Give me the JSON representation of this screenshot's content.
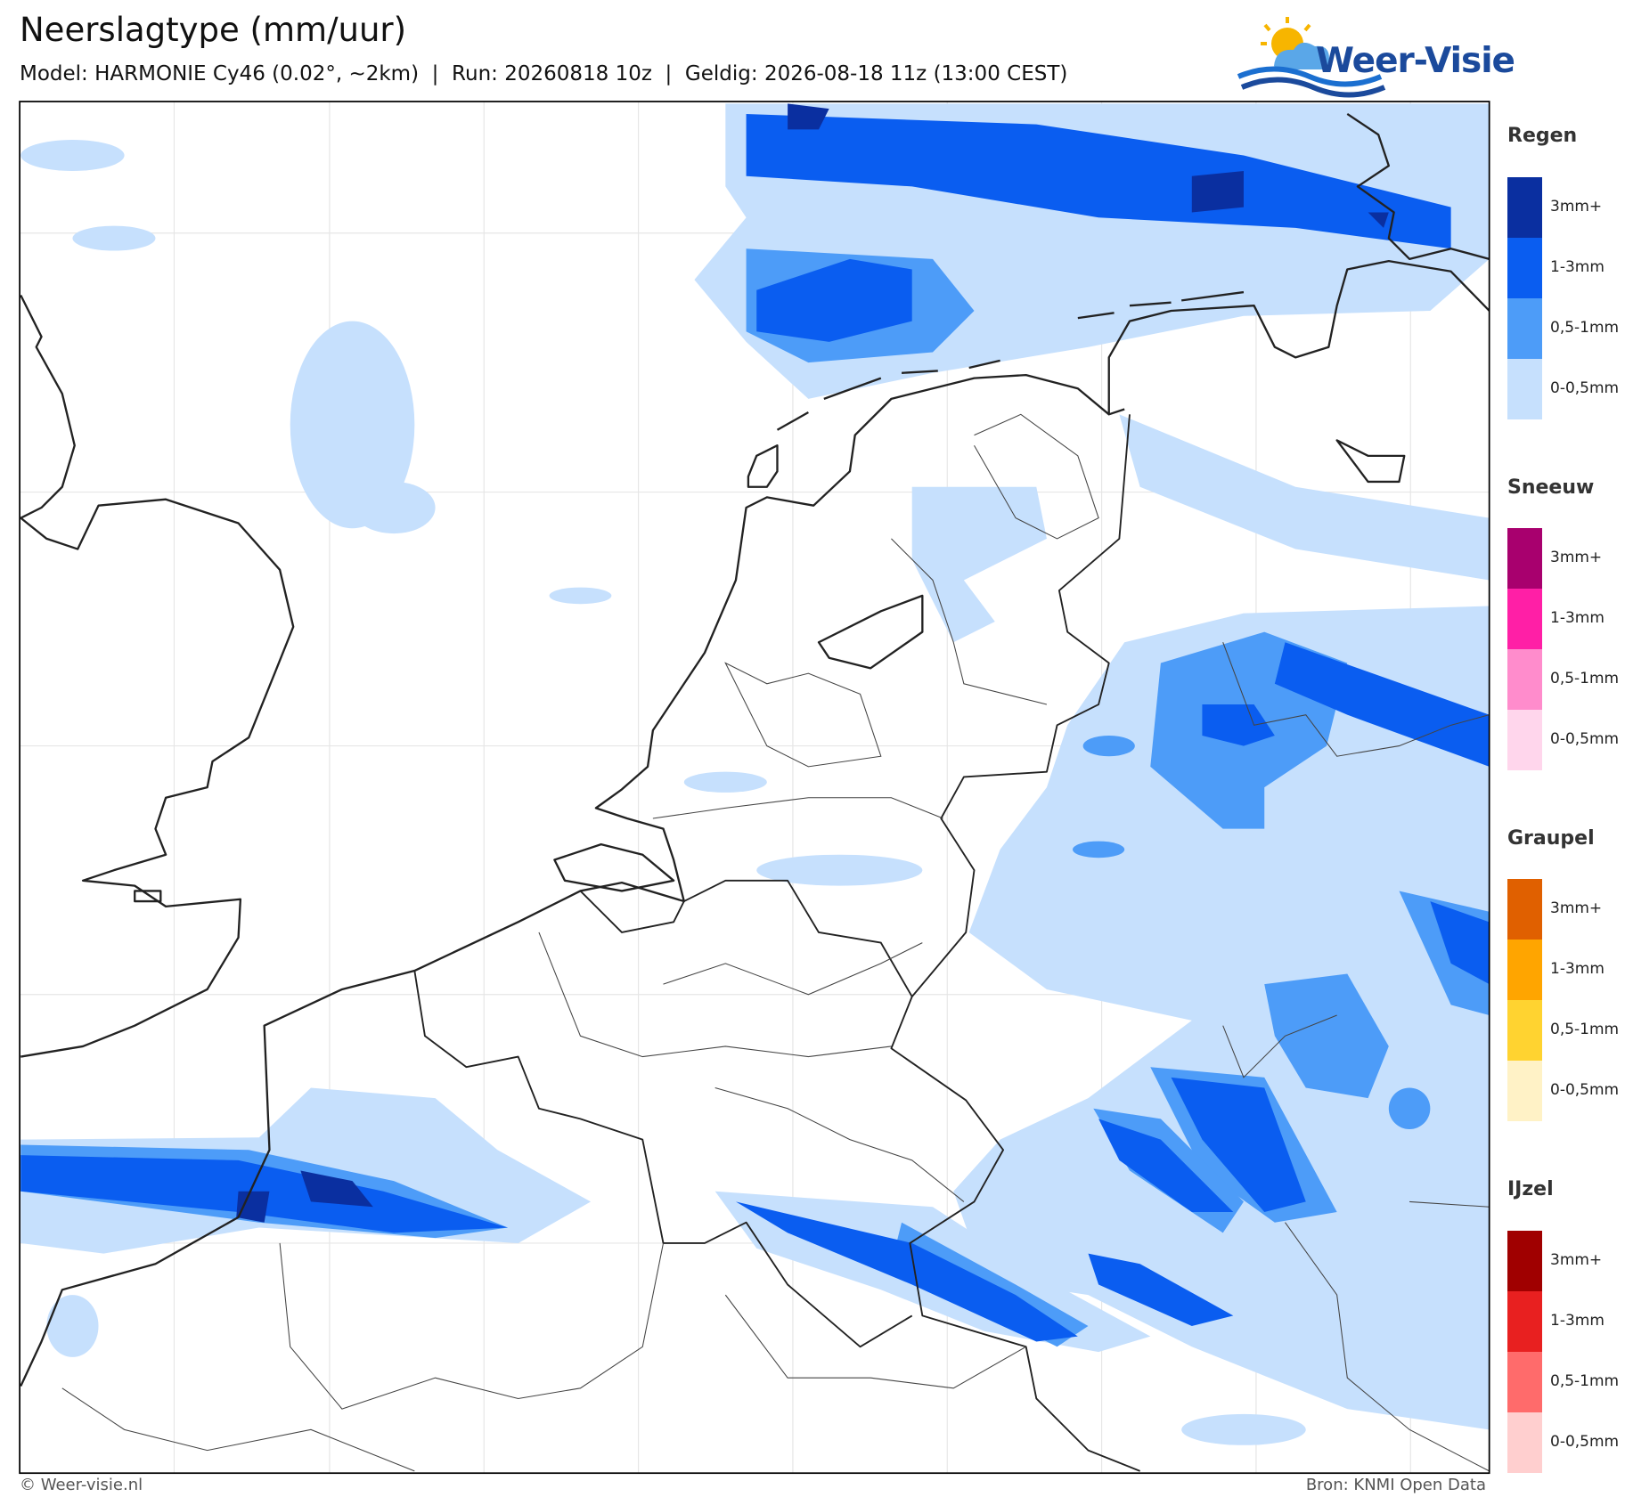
{
  "header": {
    "title": "Neerslagtype (mm/uur)",
    "subtitle": "Model: HARMONIE Cy46 (0.02°, ~2km)  |  Run: 20260818 10z  |  Geldig: 2026-08-18 11z (13:00 CEST)"
  },
  "logo": {
    "text": "Weer-Visie"
  },
  "legend": [
    {
      "title": "Regen",
      "items": [
        {
          "label": "3mm+",
          "color": "#0a2fa0"
        },
        {
          "label": "1-3mm",
          "color": "#0a5df0"
        },
        {
          "label": "0,5-1mm",
          "color": "#4d9cf8"
        },
        {
          "label": "0-0,5mm",
          "color": "#c6e0fd"
        }
      ]
    },
    {
      "title": "Sneeuw",
      "items": [
        {
          "label": "3mm+",
          "color": "#a8006e"
        },
        {
          "label": "1-3mm",
          "color": "#ff1fa6"
        },
        {
          "label": "0,5-1mm",
          "color": "#ff8ccc"
        },
        {
          "label": "0-0,5mm",
          "color": "#ffd6ec"
        }
      ]
    },
    {
      "title": "Graupel",
      "items": [
        {
          "label": "3mm+",
          "color": "#e06000"
        },
        {
          "label": "1-3mm",
          "color": "#ffa500"
        },
        {
          "label": "0,5-1mm",
          "color": "#ffd330"
        },
        {
          "label": "0-0,5mm",
          "color": "#fff2c6"
        }
      ]
    },
    {
      "title": "IJzel",
      "items": [
        {
          "label": "3mm+",
          "color": "#a00000"
        },
        {
          "label": "1-3mm",
          "color": "#e82020"
        },
        {
          "label": "0,5-1mm",
          "color": "#ff6b6b"
        },
        {
          "label": "0-0,5mm",
          "color": "#ffcfcf"
        }
      ]
    }
  ],
  "footer": {
    "left": "© Weer-visie.nl",
    "right": "Bron: KNMI Open Data"
  }
}
